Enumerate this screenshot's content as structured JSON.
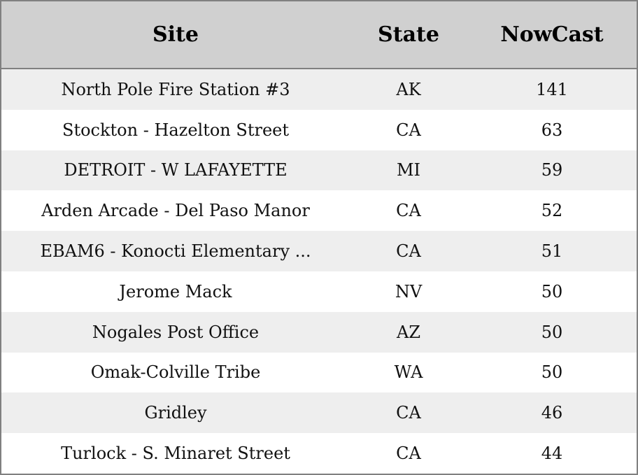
{
  "table": {
    "headers": [
      "Site",
      "State",
      "NowCast"
    ],
    "rows": [
      [
        "North Pole Fire Station #3",
        "AK",
        "141"
      ],
      [
        "Stockton - Hazelton Street",
        "CA",
        "63"
      ],
      [
        "DETROIT - W LAFAYETTE",
        "MI",
        "59"
      ],
      [
        "Arden Arcade - Del Paso Manor",
        "CA",
        "52"
      ],
      [
        "EBAM6 - Konocti Elementary ...",
        "CA",
        "51"
      ],
      [
        "Jerome Mack",
        "NV",
        "50"
      ],
      [
        "Nogales Post Office",
        "AZ",
        "50"
      ],
      [
        "Omak-Colville Tribe",
        "WA",
        "50"
      ],
      [
        "Gridley",
        "CA",
        "46"
      ],
      [
        "Turlock - S. Minaret Street",
        "CA",
        "44"
      ]
    ]
  },
  "colors": {
    "header_bg": "#d0d0d0",
    "stripe_bg": "#eeeeee",
    "border": "#808080"
  }
}
